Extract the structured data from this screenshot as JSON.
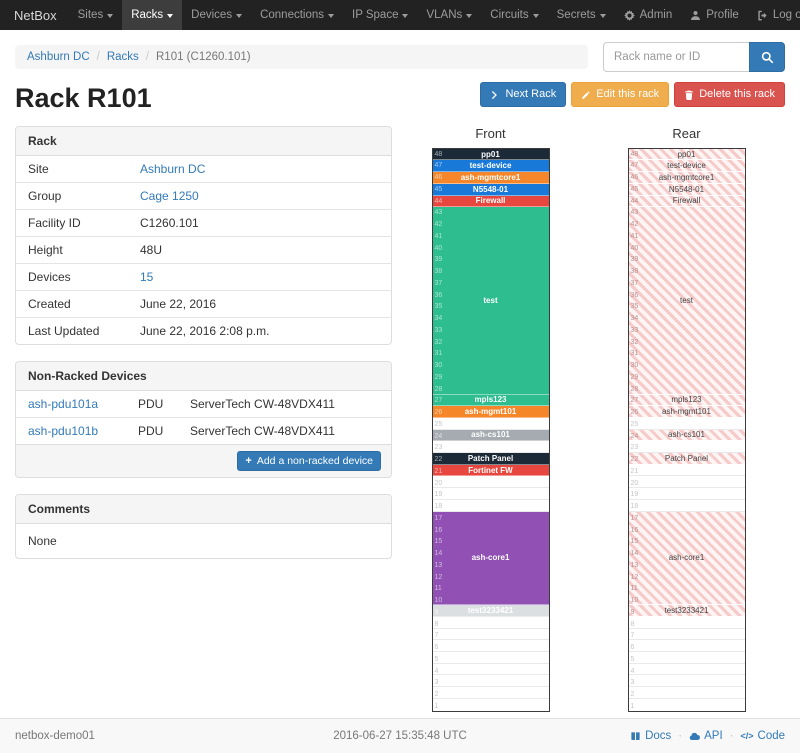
{
  "navbar": {
    "brand": "NetBox",
    "items": [
      {
        "label": "Sites"
      },
      {
        "label": "Racks",
        "active": true
      },
      {
        "label": "Devices"
      },
      {
        "label": "Connections"
      },
      {
        "label": "IP Space"
      },
      {
        "label": "VLANs"
      },
      {
        "label": "Circuits"
      },
      {
        "label": "Secrets"
      }
    ],
    "right": [
      {
        "label": "Admin",
        "icon": "gear"
      },
      {
        "label": "Profile",
        "icon": "user"
      },
      {
        "label": "Log out",
        "icon": "logout"
      }
    ]
  },
  "breadcrumb": {
    "items": [
      "Ashburn DC",
      "Racks",
      "R101 (C1260.101)"
    ]
  },
  "search": {
    "placeholder": "Rack name or ID",
    "icon": "magnifier"
  },
  "page_title": "Rack R101",
  "actions": [
    {
      "label": "Next Rack",
      "style": "primary",
      "icon": "chevron-right"
    },
    {
      "label": "Edit this rack",
      "style": "warning",
      "icon": "pencil"
    },
    {
      "label": "Delete this rack",
      "style": "danger",
      "icon": "trash"
    }
  ],
  "rack_panel": {
    "title": "Rack",
    "rows": [
      {
        "label": "Site",
        "value": "Ashburn DC",
        "link": true
      },
      {
        "label": "Group",
        "value": "Cage 1250",
        "link": true
      },
      {
        "label": "Facility ID",
        "value": "C1260.101"
      },
      {
        "label": "Height",
        "value": "48U"
      },
      {
        "label": "Devices",
        "value": "15",
        "link": true
      },
      {
        "label": "Created",
        "value": "June 22, 2016"
      },
      {
        "label": "Last Updated",
        "value": "June 22, 2016 2:08 p.m."
      }
    ]
  },
  "nonracked_panel": {
    "title": "Non-Racked Devices",
    "devices": [
      {
        "name": "ash-pdu101a",
        "role": "PDU",
        "type": "ServerTech CW-48VDX411"
      },
      {
        "name": "ash-pdu101b",
        "role": "PDU",
        "type": "ServerTech CW-48VDX411"
      }
    ],
    "add_button": "Add a non-racked device",
    "add_icon": "plus"
  },
  "comments_panel": {
    "title": "Comments",
    "body": "None"
  },
  "elevations": {
    "front": {
      "title": "Front",
      "units": [
        {
          "u": 48,
          "h": 1,
          "label": "pp01",
          "color": "#1c2a38"
        },
        {
          "u": 47,
          "h": 1,
          "label": "test-device",
          "color": "#1879d8"
        },
        {
          "u": 46,
          "h": 1,
          "label": "ash-mgmtcore1",
          "color": "#f5862a"
        },
        {
          "u": 45,
          "h": 1,
          "label": "N5548-01",
          "color": "#1879d8"
        },
        {
          "u": 44,
          "h": 1,
          "label": "Firewall",
          "color": "#e8473f"
        },
        {
          "u": 43,
          "h": 16,
          "label": "test",
          "color": "#2dbd8f"
        },
        {
          "u": 27,
          "h": 1,
          "label": "mpls123",
          "color": "#2dbd8f"
        },
        {
          "u": 26,
          "h": 1,
          "label": "ash-mgmt101",
          "color": "#f5862a"
        },
        {
          "u": 25,
          "h": 1,
          "empty": true
        },
        {
          "u": 24,
          "h": 1,
          "label": "ash-cs101",
          "color": "#a5abb0"
        },
        {
          "u": 23,
          "h": 1,
          "empty": true
        },
        {
          "u": 22,
          "h": 1,
          "label": "Patch Panel",
          "color": "#1c2a38"
        },
        {
          "u": 21,
          "h": 1,
          "label": "Fortinet FW",
          "color": "#e8473f"
        },
        {
          "u": 20,
          "h": 1,
          "empty": true
        },
        {
          "u": 19,
          "h": 1,
          "empty": true
        },
        {
          "u": 18,
          "h": 1,
          "empty": true
        },
        {
          "u": 17,
          "h": 8,
          "label": "ash-core1",
          "color": "#9150b4"
        },
        {
          "u": 9,
          "h": 1,
          "label": "test3233421",
          "color": "#dcdfe1",
          "text": "#ffffff"
        },
        {
          "u": 8,
          "h": 1,
          "empty": true
        },
        {
          "u": 7,
          "h": 1,
          "empty": true
        },
        {
          "u": 6,
          "h": 1,
          "empty": true
        },
        {
          "u": 5,
          "h": 1,
          "empty": true
        },
        {
          "u": 4,
          "h": 1,
          "empty": true
        },
        {
          "u": 3,
          "h": 1,
          "empty": true
        },
        {
          "u": 2,
          "h": 1,
          "empty": true
        },
        {
          "u": 1,
          "h": 1,
          "empty": true
        }
      ]
    },
    "rear": {
      "title": "Rear",
      "units": [
        {
          "u": 48,
          "h": 1,
          "label": "pp01",
          "striped": true
        },
        {
          "u": 47,
          "h": 1,
          "label": "test-device",
          "striped": true
        },
        {
          "u": 46,
          "h": 1,
          "label": "ash-mgmtcore1",
          "striped": true
        },
        {
          "u": 45,
          "h": 1,
          "label": "N5548-01",
          "striped": true
        },
        {
          "u": 44,
          "h": 1,
          "label": "Firewall",
          "striped": true
        },
        {
          "u": 43,
          "h": 16,
          "label": "test",
          "striped": true
        },
        {
          "u": 27,
          "h": 1,
          "label": "mpls123",
          "striped": true
        },
        {
          "u": 26,
          "h": 1,
          "label": "ash-mgmt101",
          "striped": true
        },
        {
          "u": 25,
          "h": 1,
          "empty": true
        },
        {
          "u": 24,
          "h": 1,
          "label": "ash-cs101",
          "striped": true
        },
        {
          "u": 23,
          "h": 1,
          "empty": true
        },
        {
          "u": 22,
          "h": 1,
          "label": "Patch Panel",
          "striped": true
        },
        {
          "u": 21,
          "h": 1,
          "empty": true
        },
        {
          "u": 20,
          "h": 1,
          "empty": true
        },
        {
          "u": 19,
          "h": 1,
          "empty": true
        },
        {
          "u": 18,
          "h": 1,
          "empty": true
        },
        {
          "u": 17,
          "h": 8,
          "label": "ash-core1",
          "striped": true
        },
        {
          "u": 9,
          "h": 1,
          "label": "test3233421",
          "striped": true
        },
        {
          "u": 8,
          "h": 1,
          "empty": true
        },
        {
          "u": 7,
          "h": 1,
          "empty": true
        },
        {
          "u": 6,
          "h": 1,
          "empty": true
        },
        {
          "u": 5,
          "h": 1,
          "empty": true
        },
        {
          "u": 4,
          "h": 1,
          "empty": true
        },
        {
          "u": 3,
          "h": 1,
          "empty": true
        },
        {
          "u": 2,
          "h": 1,
          "empty": true
        },
        {
          "u": 1,
          "h": 1,
          "empty": true
        }
      ]
    }
  },
  "footer": {
    "hostname": "netbox-demo01",
    "timestamp": "2016-06-27 15:35:48 UTC",
    "links": [
      {
        "label": "Docs",
        "icon": "book"
      },
      {
        "label": "API",
        "icon": "cloud"
      },
      {
        "label": "Code",
        "icon": "code"
      }
    ]
  }
}
